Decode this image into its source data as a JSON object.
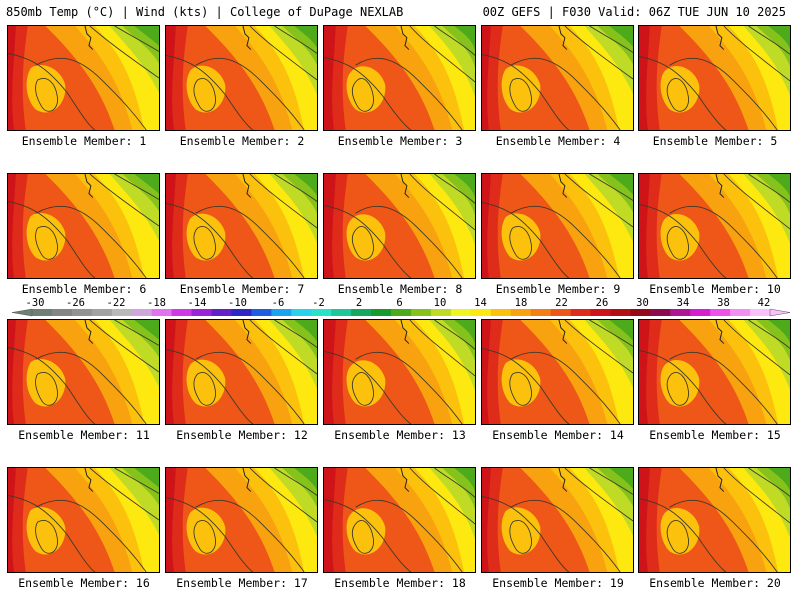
{
  "header": {
    "left": "850mb Temp (°C) | Wind (kts) | College of DuPage NEXLAB",
    "right": "00Z GEFS | F030 Valid: 06Z TUE JUN 10 2025"
  },
  "members": [
    {
      "label": "Ensemble Member: 1"
    },
    {
      "label": "Ensemble Member: 2"
    },
    {
      "label": "Ensemble Member: 3"
    },
    {
      "label": "Ensemble Member: 4"
    },
    {
      "label": "Ensemble Member: 5"
    },
    {
      "label": "Ensemble Member: 6"
    },
    {
      "label": "Ensemble Member: 7"
    },
    {
      "label": "Ensemble Member: 8"
    },
    {
      "label": "Ensemble Member: 9"
    },
    {
      "label": "Ensemble Member: 10"
    },
    {
      "label": "Ensemble Member: 11"
    },
    {
      "label": "Ensemble Member: 12"
    },
    {
      "label": "Ensemble Member: 13"
    },
    {
      "label": "Ensemble Member: 14"
    },
    {
      "label": "Ensemble Member: 15"
    },
    {
      "label": "Ensemble Member: 16"
    },
    {
      "label": "Ensemble Member: 17"
    },
    {
      "label": "Ensemble Member: 18"
    },
    {
      "label": "Ensemble Member: 19"
    },
    {
      "label": "Ensemble Member: 20"
    }
  ],
  "colorbar": {
    "labels": [
      "-30",
      "-26",
      "-22",
      "-18",
      "-14",
      "-10",
      "-6",
      "-2",
      "2",
      "6",
      "10",
      "14",
      "18",
      "22",
      "26",
      "30",
      "34",
      "38",
      "42"
    ],
    "colors": [
      "#6f7f74",
      "#858585",
      "#939393",
      "#a2a2a2",
      "#b9b9b9",
      "#cfa7dc",
      "#e173f0",
      "#cf39e6",
      "#9a24d6",
      "#6420c8",
      "#2c27c5",
      "#1d60df",
      "#1aa3ee",
      "#28d2ec",
      "#2ae2c8",
      "#1ec69a",
      "#17a860",
      "#189b2b",
      "#4caa1b",
      "#86c21c",
      "#c0db25",
      "#eef523",
      "#fde810",
      "#fcc10d",
      "#f9a210",
      "#f47f14",
      "#ee5717",
      "#df2c1a",
      "#cf1419",
      "#b50f16",
      "#96091a",
      "#8d0a4e",
      "#b01595",
      "#d51ed0",
      "#ec52ea",
      "#f58ef3",
      "#f9c1f9"
    ]
  },
  "map_palette": {
    "contour": "#3a3a2a",
    "coast": "#222222"
  }
}
